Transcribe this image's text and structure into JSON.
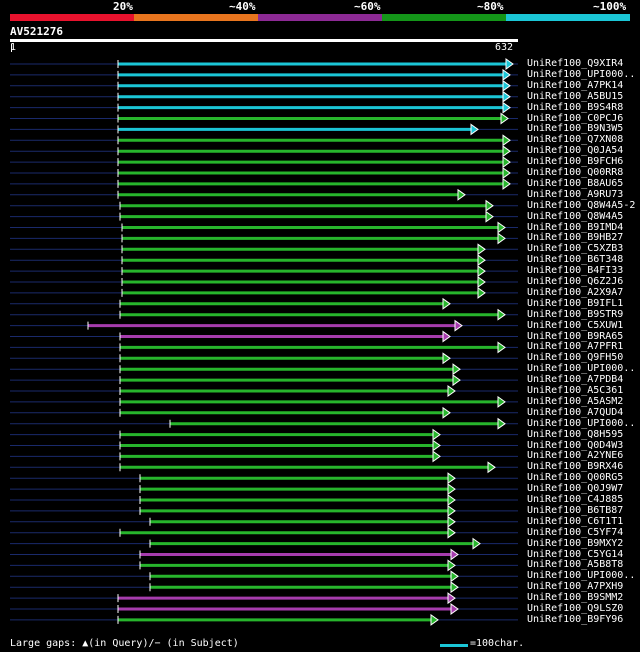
{
  "legend": {
    "colors": [
      "#e8122d",
      "#e8751e",
      "#8d2a95",
      "#149619",
      "#1bc6d6"
    ],
    "labels": [
      "20%",
      "~40%",
      "~60%",
      "~80%",
      "~100%"
    ]
  },
  "query": {
    "name": "AV521276",
    "start": "1",
    "end": "632"
  },
  "hits": [
    {
      "name": "UniRef100_Q9XIR4",
      "color": "cyan"
    },
    {
      "name": "UniRef100_UPI000..",
      "color": "cyan"
    },
    {
      "name": "UniRef100_A7PK14",
      "color": "cyan"
    },
    {
      "name": "UniRef100_A5BU15",
      "color": "cyan"
    },
    {
      "name": "UniRef100_B9S4R8",
      "color": "cyan"
    },
    {
      "name": "UniRef100_C0PCJ6",
      "color": "green"
    },
    {
      "name": "UniRef100_B9N3W5",
      "color": "cyan"
    },
    {
      "name": "UniRef100_Q7XN08",
      "color": "green"
    },
    {
      "name": "UniRef100_Q0JA54",
      "color": "green"
    },
    {
      "name": "UniRef100_B9FCH6",
      "color": "green"
    },
    {
      "name": "UniRef100_Q00RR8",
      "color": "green"
    },
    {
      "name": "UniRef100_B8AU65",
      "color": "green"
    },
    {
      "name": "UniRef100_A9RU73",
      "color": "green"
    },
    {
      "name": "UniRef100_Q8W4A5-2",
      "color": "green"
    },
    {
      "name": "UniRef100_Q8W4A5",
      "color": "green"
    },
    {
      "name": "UniRef100_B9IMD4",
      "color": "green"
    },
    {
      "name": "UniRef100_B9HB27",
      "color": "green"
    },
    {
      "name": "UniRef100_C5XZB3",
      "color": "green"
    },
    {
      "name": "UniRef100_B6T348",
      "color": "green"
    },
    {
      "name": "UniRef100_B4FI33",
      "color": "green"
    },
    {
      "name": "UniRef100_Q6Z2J6",
      "color": "green"
    },
    {
      "name": "UniRef100_A2X9A7",
      "color": "green"
    },
    {
      "name": "UniRef100_B9IFL1",
      "color": "green"
    },
    {
      "name": "UniRef100_B9STR9",
      "color": "green"
    },
    {
      "name": "UniRef100_C5XUW1",
      "color": "purple"
    },
    {
      "name": "UniRef100_B9RA65",
      "color": "purple"
    },
    {
      "name": "UniRef100_A7PFR1",
      "color": "green"
    },
    {
      "name": "UniRef100_Q9FH50",
      "color": "green"
    },
    {
      "name": "UniRef100_UPI000..",
      "color": "green"
    },
    {
      "name": "UniRef100_A7PDB4",
      "color": "green"
    },
    {
      "name": "UniRef100_A5C361",
      "color": "green"
    },
    {
      "name": "UniRef100_A5ASM2",
      "color": "green"
    },
    {
      "name": "UniRef100_A7QUD4",
      "color": "green"
    },
    {
      "name": "UniRef100_UPI000..",
      "color": "green"
    },
    {
      "name": "UniRef100_Q8H595",
      "color": "green"
    },
    {
      "name": "UniRef100_Q0D4W3",
      "color": "green"
    },
    {
      "name": "UniRef100_A2YNE6",
      "color": "green"
    },
    {
      "name": "UniRef100_B9RX46",
      "color": "green"
    },
    {
      "name": "UniRef100_Q00RG5",
      "color": "green"
    },
    {
      "name": "UniRef100_Q0J9W7",
      "color": "green"
    },
    {
      "name": "UniRef100_C4J885",
      "color": "green"
    },
    {
      "name": "UniRef100_B6TB87",
      "color": "green"
    },
    {
      "name": "UniRef100_C6T1T1",
      "color": "green"
    },
    {
      "name": "UniRef100_C5YF74",
      "color": "green"
    },
    {
      "name": "UniRef100_B9MXY2",
      "color": "green"
    },
    {
      "name": "UniRef100_C5YG14",
      "color": "purple"
    },
    {
      "name": "UniRef100_A5B8T8",
      "color": "green"
    },
    {
      "name": "UniRef100_UPI000..",
      "color": "green"
    },
    {
      "name": "UniRef100_A7PXH9",
      "color": "green"
    },
    {
      "name": "UniRef100_B9SMM2",
      "color": "purple"
    },
    {
      "name": "UniRef100_Q9LSZ0",
      "color": "purple"
    },
    {
      "name": "UniRef100_B9FY96",
      "color": "green"
    }
  ],
  "footer": {
    "gaps_text": "Large gaps: ▲(in Query)/− (in Subject)",
    "scale_text": "=100char."
  }
}
